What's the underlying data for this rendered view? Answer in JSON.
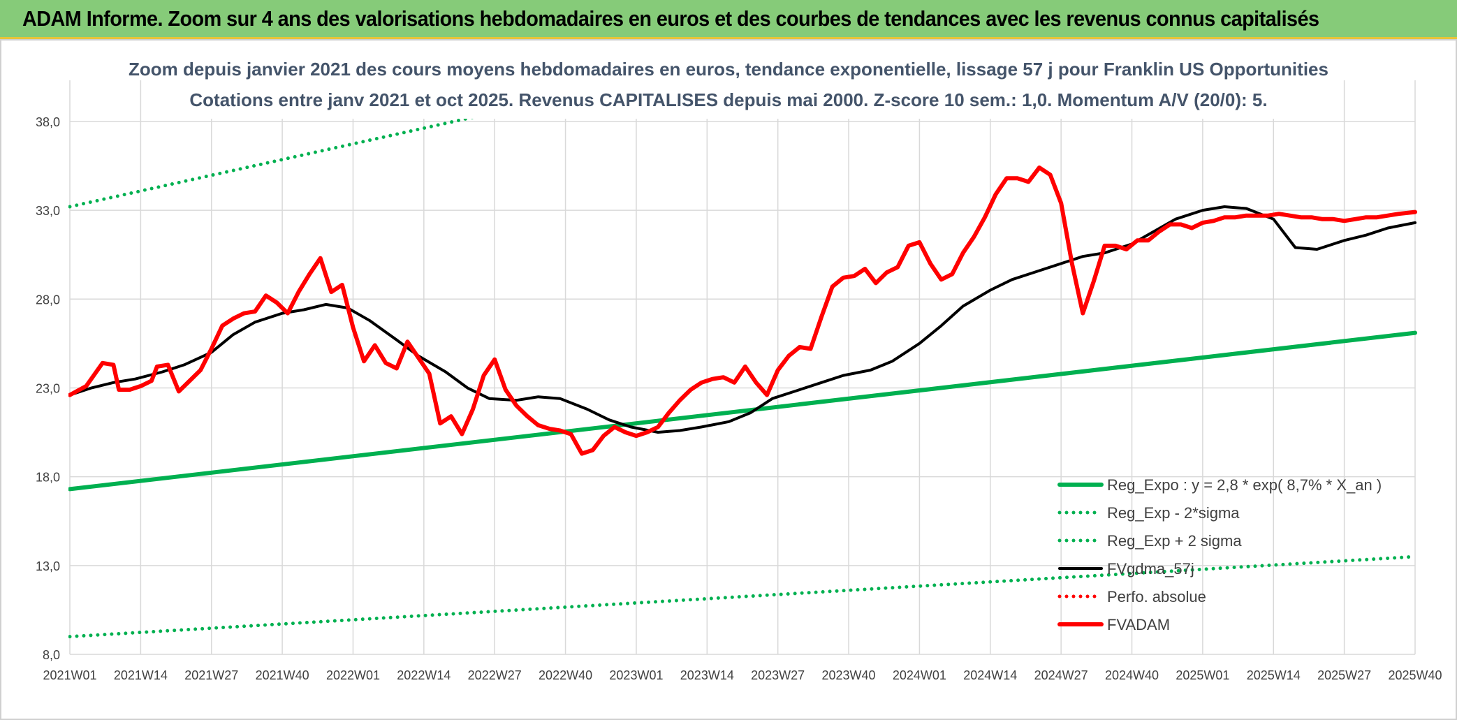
{
  "banner": {
    "title": "ADAM Informe. Zoom sur 4 ans des valorisations hebdomadaires en euros et des courbes de tendances avec les revenus connus capitalisés"
  },
  "chart_data": {
    "type": "line",
    "title": "Zoom depuis janvier 2021 des cours moyens hebdomadaires en euros, tendance exponentielle, lissage 57 j pour Franklin US Opportunities",
    "subtitle": "Cotations entre janv 2021 et oct 2025. Revenus CAPITALISES depuis mai 2000. Z-score 10 sem.: 1,0. Momentum A/V (20/0): 5.",
    "xlabel": "",
    "ylabel": "",
    "ylim": [
      8.0,
      40.0
    ],
    "yticks": [
      "8,0",
      "13,0",
      "18,0",
      "23,0",
      "28,0",
      "33,0",
      "38,0"
    ],
    "yticks_values": [
      8,
      13,
      18,
      23,
      28,
      33,
      38
    ],
    "xticks": [
      "2021W01",
      "2021W14",
      "2021W27",
      "2021W40",
      "2022W01",
      "2022W14",
      "2022W27",
      "2022W40",
      "2023W01",
      "2023W14",
      "2023W27",
      "2023W40",
      "2024W01",
      "2024W14",
      "2024W27",
      "2024W40",
      "2025W01",
      "2025W14",
      "2025W27",
      "2025W40"
    ],
    "grid": true,
    "legend_position": "bottom-right",
    "series": [
      {
        "name": "Reg_Expo : y = 2,8 * exp( 8,7% *  X_an )",
        "style": "solid-thick",
        "color": "#00b050",
        "x": [
          0,
          247
        ],
        "values": [
          17.3,
          26.1
        ]
      },
      {
        "name": "Reg_Exp - 2*sigma",
        "style": "dotted",
        "color": "#00b050",
        "x": [
          0,
          247
        ],
        "values": [
          9.0,
          13.5
        ]
      },
      {
        "name": "Reg_Exp + 2 sigma",
        "style": "dotted",
        "color": "#00b050",
        "x": [
          0,
          247
        ],
        "values": [
          33.2,
          50.0
        ]
      },
      {
        "name": "FVgdma_57j",
        "style": "solid",
        "color": "#000000",
        "x": [
          0,
          4,
          8,
          12,
          17,
          21,
          26,
          30,
          34,
          39,
          43,
          47,
          51,
          55,
          60,
          64,
          69,
          73,
          77,
          82,
          86,
          90,
          95,
          99,
          103,
          108,
          112,
          116,
          121,
          125,
          129,
          134,
          138,
          142,
          147,
          151,
          156,
          160,
          164,
          169,
          173,
          177,
          182,
          186,
          190,
          195,
          199,
          203,
          208,
          212,
          216,
          221,
          225,
          229,
          234,
          238,
          242,
          247
        ],
        "values": [
          22.6,
          23.0,
          23.3,
          23.5,
          23.9,
          24.3,
          25.0,
          26.0,
          26.7,
          27.2,
          27.4,
          27.7,
          27.5,
          26.8,
          25.7,
          24.8,
          23.9,
          23.0,
          22.4,
          22.3,
          22.5,
          22.4,
          21.8,
          21.2,
          20.8,
          20.5,
          20.6,
          20.8,
          21.1,
          21.6,
          22.4,
          22.9,
          23.3,
          23.7,
          24.0,
          24.5,
          25.5,
          26.5,
          27.6,
          28.5,
          29.1,
          29.5,
          30.0,
          30.4,
          30.6,
          31.1,
          31.8,
          32.5,
          33.0,
          33.2,
          33.1,
          32.5,
          30.9,
          30.8,
          31.3,
          31.6,
          32.0,
          32.3
        ]
      },
      {
        "name": "Perfo. absolue",
        "style": "dotted",
        "color": "#ff0000",
        "x": [],
        "values": []
      },
      {
        "name": "FVADAM",
        "style": "solid-thick",
        "color": "#ff0000",
        "x": [
          0,
          3,
          6,
          8,
          9,
          11,
          13,
          15,
          16,
          18,
          20,
          22,
          24,
          26,
          28,
          30,
          32,
          34,
          36,
          38,
          40,
          42,
          44,
          46,
          48,
          50,
          52,
          54,
          56,
          58,
          60,
          62,
          64,
          66,
          68,
          70,
          72,
          74,
          76,
          78,
          80,
          82,
          84,
          86,
          88,
          90,
          92,
          94,
          96,
          98,
          100,
          102,
          104,
          106,
          108,
          110,
          112,
          114,
          116,
          118,
          120,
          122,
          124,
          126,
          128,
          130,
          132,
          134,
          136,
          138,
          140,
          142,
          144,
          146,
          148,
          150,
          152,
          154,
          156,
          158,
          160,
          162,
          164,
          166,
          168,
          170,
          172,
          174,
          176,
          178,
          180,
          182,
          184,
          186,
          188,
          190,
          192,
          194,
          196,
          198,
          200,
          202,
          204,
          206,
          208,
          210,
          212,
          214,
          216,
          218,
          220,
          222,
          224,
          226,
          228,
          230,
          232,
          234,
          236,
          238,
          240,
          242,
          244,
          247
        ],
        "values": [
          22.6,
          23.1,
          24.4,
          24.3,
          22.9,
          22.9,
          23.1,
          23.4,
          24.2,
          24.3,
          22.8,
          23.4,
          24.0,
          25.2,
          26.5,
          26.9,
          27.2,
          27.3,
          28.2,
          27.8,
          27.2,
          28.4,
          29.4,
          30.3,
          28.4,
          28.8,
          26.4,
          24.5,
          25.4,
          24.4,
          24.1,
          25.6,
          24.7,
          23.8,
          21.0,
          21.4,
          20.4,
          21.8,
          23.7,
          24.6,
          22.9,
          22.0,
          21.4,
          20.9,
          20.7,
          20.6,
          20.4,
          19.3,
          19.5,
          20.3,
          20.8,
          20.5,
          20.3,
          20.5,
          20.8,
          21.6,
          22.3,
          22.9,
          23.3,
          23.5,
          23.6,
          23.3,
          24.2,
          23.3,
          22.6,
          24.0,
          24.8,
          25.3,
          25.2,
          27.0,
          28.7,
          29.2,
          29.3,
          29.7,
          28.9,
          29.5,
          29.8,
          31.0,
          31.2,
          30.0,
          29.1,
          29.4,
          30.6,
          31.5,
          32.6,
          33.9,
          34.8,
          34.8,
          34.6,
          35.4,
          35.0,
          33.4,
          30.0,
          27.2,
          29.0,
          31.0,
          31.0,
          30.8,
          31.3,
          31.3,
          31.8,
          32.2,
          32.2,
          32.0,
          32.3,
          32.4,
          32.6,
          32.6,
          32.7,
          32.7,
          32.7,
          32.8,
          32.7,
          32.6,
          32.6,
          32.5,
          32.5,
          32.4,
          32.5,
          32.6,
          32.6,
          32.7,
          32.8,
          32.9
        ]
      }
    ]
  },
  "colors": {
    "banner_bg": "#86cb79",
    "grid": "#d9d9d9",
    "trend_green": "#00b050",
    "price_red": "#ff0000",
    "smooth_black": "#000000",
    "subtitle": "#44546a"
  }
}
